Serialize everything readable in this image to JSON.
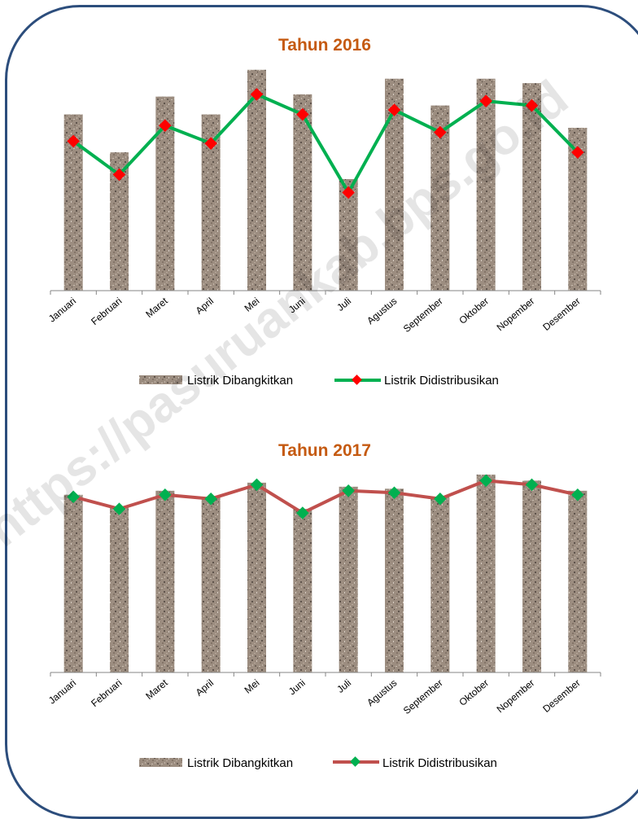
{
  "watermark": "https://pasuruankab.bps.go.id",
  "charts": [
    {
      "title": "Tahun 2016",
      "legend": {
        "bar": "Listrik Dibangkitkan",
        "line": "Listrik Didistribusikan"
      },
      "colors": {
        "line": "#00b050",
        "marker": "#ff0000",
        "bar": "#9c8d80"
      }
    },
    {
      "title": "Tahun 2017",
      "legend": {
        "bar": "Listrik Dibangkitkan",
        "line": "Listrik Didistribusikan"
      },
      "colors": {
        "line": "#c0504d",
        "marker": "#00b050",
        "bar": "#9c8d80"
      }
    }
  ],
  "chart_data": [
    {
      "type": "bar",
      "title": "Tahun 2016",
      "categories": [
        "Januari",
        "Februari",
        "Maret",
        "April",
        "Mei",
        "Juni",
        "Juli",
        "Agustus",
        "September",
        "Oktober",
        "Nopember",
        "Desember"
      ],
      "ylim": [
        0,
        100
      ],
      "grid": false,
      "legend_position": "bottom",
      "series": [
        {
          "name": "Listrik Dibangkitkan",
          "type": "bar",
          "values": [
            79,
            62,
            87,
            79,
            99,
            88,
            50,
            95,
            83,
            95,
            93,
            73
          ]
        },
        {
          "name": "Listrik Didistribusikan",
          "type": "line",
          "values": [
            67,
            52,
            74,
            66,
            88,
            79,
            44,
            81,
            71,
            85,
            83,
            62
          ]
        }
      ]
    },
    {
      "type": "bar",
      "title": "Tahun 2017",
      "categories": [
        "Januari",
        "Februari",
        "Maret",
        "April",
        "Mei",
        "Juni",
        "Juli",
        "Agustus",
        "September",
        "Oktober",
        "Nopember",
        "Desember"
      ],
      "ylim": [
        0,
        100
      ],
      "grid": false,
      "legend_position": "bottom",
      "series": [
        {
          "name": "Listrik Dibangkitkan",
          "type": "bar",
          "values": [
            88,
            82,
            90,
            87,
            94,
            81,
            92,
            91,
            87,
            98,
            95,
            90
          ]
        },
        {
          "name": "Listrik Didistribusikan",
          "type": "line",
          "values": [
            87,
            81,
            88,
            86,
            93,
            79,
            90,
            89,
            86,
            95,
            93,
            88
          ]
        }
      ]
    }
  ]
}
